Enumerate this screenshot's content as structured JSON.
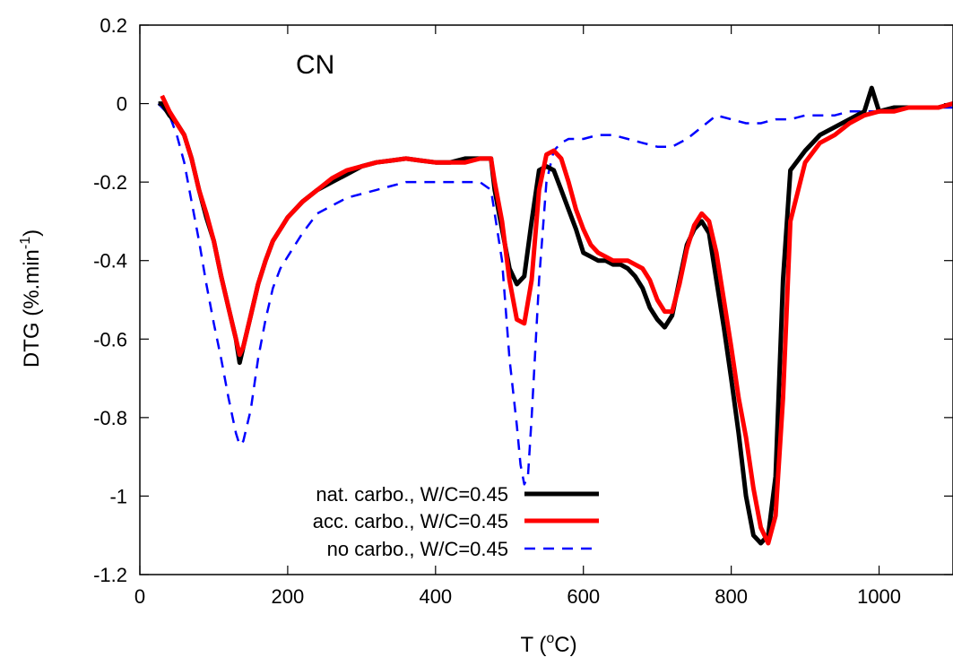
{
  "chart_data": {
    "type": "line",
    "annotation": "CN",
    "xlabel": "T (",
    "xlabel_sup": "o",
    "xlabel_tail": "C)",
    "ylabel": "DTG (%.min",
    "ylabel_sup": "-1",
    "ylabel_tail": ")",
    "xlim": [
      0,
      1100
    ],
    "ylim": [
      -1.2,
      0.2
    ],
    "xticks": [
      0,
      200,
      400,
      600,
      800,
      1000
    ],
    "yticks": [
      -1.2,
      -1,
      -0.8,
      -0.6,
      -0.4,
      -0.2,
      0,
      0.2
    ],
    "legend_position": "bottom-left",
    "series": [
      {
        "name": "nat. carbo., W/C=0.45",
        "color": "#000000",
        "style": "solid",
        "x": [
          25,
          30,
          40,
          50,
          60,
          70,
          80,
          90,
          100,
          110,
          120,
          130,
          135,
          140,
          150,
          160,
          170,
          180,
          190,
          200,
          220,
          240,
          260,
          280,
          300,
          320,
          340,
          360,
          380,
          400,
          420,
          440,
          460,
          475,
          480,
          490,
          500,
          510,
          520,
          530,
          540,
          550,
          560,
          570,
          580,
          590,
          600,
          610,
          620,
          630,
          640,
          650,
          660,
          670,
          680,
          690,
          700,
          710,
          720,
          730,
          740,
          750,
          760,
          770,
          780,
          790,
          800,
          810,
          820,
          830,
          840,
          850,
          860,
          870,
          880,
          900,
          920,
          940,
          960,
          980,
          990,
          1000,
          1020,
          1040,
          1060,
          1080,
          1100
        ],
        "y": [
          0.0,
          0.0,
          -0.03,
          -0.05,
          -0.08,
          -0.14,
          -0.22,
          -0.29,
          -0.35,
          -0.44,
          -0.52,
          -0.6,
          -0.66,
          -0.62,
          -0.54,
          -0.46,
          -0.4,
          -0.35,
          -0.32,
          -0.29,
          -0.25,
          -0.22,
          -0.2,
          -0.18,
          -0.16,
          -0.15,
          -0.145,
          -0.14,
          -0.145,
          -0.15,
          -0.15,
          -0.14,
          -0.14,
          -0.14,
          -0.22,
          -0.32,
          -0.42,
          -0.46,
          -0.44,
          -0.3,
          -0.17,
          -0.16,
          -0.17,
          -0.22,
          -0.27,
          -0.32,
          -0.38,
          -0.39,
          -0.4,
          -0.4,
          -0.41,
          -0.41,
          -0.42,
          -0.44,
          -0.47,
          -0.52,
          -0.55,
          -0.57,
          -0.54,
          -0.45,
          -0.36,
          -0.32,
          -0.3,
          -0.33,
          -0.45,
          -0.57,
          -0.7,
          -0.84,
          -1.0,
          -1.1,
          -1.12,
          -1.1,
          -0.95,
          -0.45,
          -0.17,
          -0.12,
          -0.08,
          -0.06,
          -0.04,
          -0.02,
          0.04,
          -0.02,
          -0.01,
          -0.01,
          -0.01,
          -0.01,
          0.0
        ]
      },
      {
        "name": "acc. carbo., W/C=0.45",
        "color": "#ff0000",
        "style": "solid",
        "x": [
          30,
          40,
          50,
          60,
          70,
          80,
          90,
          100,
          110,
          120,
          130,
          135,
          140,
          150,
          160,
          170,
          180,
          190,
          200,
          220,
          240,
          260,
          280,
          300,
          320,
          340,
          360,
          380,
          400,
          420,
          440,
          460,
          475,
          480,
          490,
          500,
          510,
          520,
          530,
          540,
          550,
          560,
          570,
          580,
          590,
          600,
          610,
          620,
          630,
          640,
          650,
          660,
          670,
          680,
          690,
          700,
          710,
          720,
          730,
          740,
          750,
          760,
          770,
          780,
          790,
          800,
          810,
          820,
          830,
          840,
          850,
          860,
          870,
          880,
          900,
          920,
          940,
          960,
          980,
          1000,
          1020,
          1040,
          1060,
          1080,
          1100
        ],
        "y": [
          0.02,
          -0.02,
          -0.05,
          -0.08,
          -0.14,
          -0.22,
          -0.28,
          -0.35,
          -0.44,
          -0.52,
          -0.6,
          -0.64,
          -0.62,
          -0.54,
          -0.46,
          -0.4,
          -0.35,
          -0.32,
          -0.29,
          -0.25,
          -0.22,
          -0.19,
          -0.17,
          -0.16,
          -0.15,
          -0.145,
          -0.14,
          -0.145,
          -0.15,
          -0.15,
          -0.15,
          -0.14,
          -0.14,
          -0.2,
          -0.3,
          -0.45,
          -0.55,
          -0.56,
          -0.45,
          -0.22,
          -0.13,
          -0.12,
          -0.14,
          -0.2,
          -0.27,
          -0.32,
          -0.36,
          -0.38,
          -0.39,
          -0.4,
          -0.4,
          -0.4,
          -0.41,
          -0.42,
          -0.45,
          -0.5,
          -0.53,
          -0.53,
          -0.46,
          -0.37,
          -0.31,
          -0.28,
          -0.3,
          -0.38,
          -0.5,
          -0.62,
          -0.75,
          -0.85,
          -0.98,
          -1.08,
          -1.12,
          -1.05,
          -0.75,
          -0.3,
          -0.15,
          -0.1,
          -0.08,
          -0.05,
          -0.03,
          -0.02,
          -0.02,
          -0.01,
          -0.01,
          -0.01,
          0.0
        ]
      },
      {
        "name": "no carbo., W/C=0.45",
        "color": "#0000ff",
        "style": "dashed",
        "x": [
          25,
          40,
          50,
          60,
          70,
          80,
          90,
          100,
          110,
          120,
          130,
          135,
          140,
          150,
          160,
          170,
          180,
          190,
          200,
          220,
          240,
          260,
          280,
          300,
          320,
          340,
          360,
          380,
          400,
          420,
          440,
          460,
          475,
          490,
          500,
          510,
          515,
          520,
          525,
          530,
          540,
          550,
          560,
          570,
          580,
          600,
          620,
          640,
          660,
          680,
          700,
          720,
          740,
          760,
          780,
          800,
          820,
          840,
          860,
          880,
          900,
          920,
          940,
          960,
          980,
          1000,
          1020,
          1040,
          1060,
          1080,
          1100
        ],
        "y": [
          0.0,
          -0.03,
          -0.08,
          -0.15,
          -0.25,
          -0.35,
          -0.46,
          -0.56,
          -0.65,
          -0.75,
          -0.84,
          -0.87,
          -0.86,
          -0.78,
          -0.65,
          -0.55,
          -0.47,
          -0.42,
          -0.39,
          -0.33,
          -0.28,
          -0.26,
          -0.24,
          -0.23,
          -0.22,
          -0.21,
          -0.2,
          -0.2,
          -0.2,
          -0.2,
          -0.2,
          -0.2,
          -0.22,
          -0.4,
          -0.65,
          -0.82,
          -0.92,
          -0.97,
          -0.95,
          -0.8,
          -0.45,
          -0.2,
          -0.12,
          -0.1,
          -0.09,
          -0.09,
          -0.08,
          -0.08,
          -0.09,
          -0.1,
          -0.11,
          -0.11,
          -0.09,
          -0.06,
          -0.03,
          -0.04,
          -0.05,
          -0.05,
          -0.04,
          -0.04,
          -0.03,
          -0.03,
          -0.03,
          -0.02,
          -0.02,
          -0.02,
          -0.02,
          -0.01,
          -0.01,
          -0.01,
          -0.01
        ]
      }
    ]
  }
}
